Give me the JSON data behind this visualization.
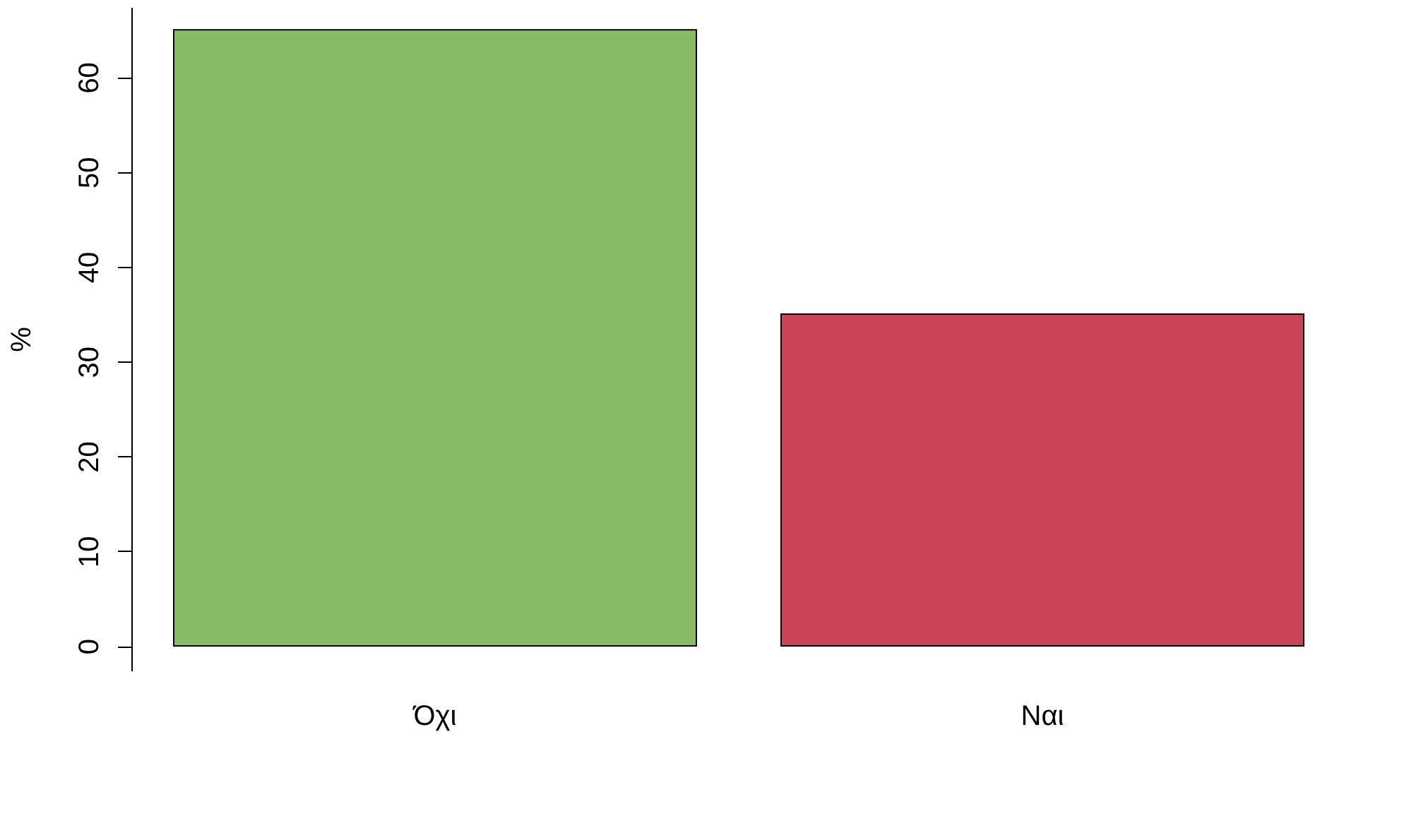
{
  "chart_data": {
    "type": "bar",
    "ylabel": "%",
    "categories": [
      "Όχι",
      "Ναι"
    ],
    "series": [
      {
        "colors": [
          "#88bc66",
          "#cb4356"
        ],
        "values": [
          65,
          35
        ]
      }
    ],
    "ylim": [
      -2.6,
      67.4
    ],
    "yticks": [
      0,
      10,
      20,
      30,
      40,
      50,
      60
    ],
    "grid": false
  }
}
